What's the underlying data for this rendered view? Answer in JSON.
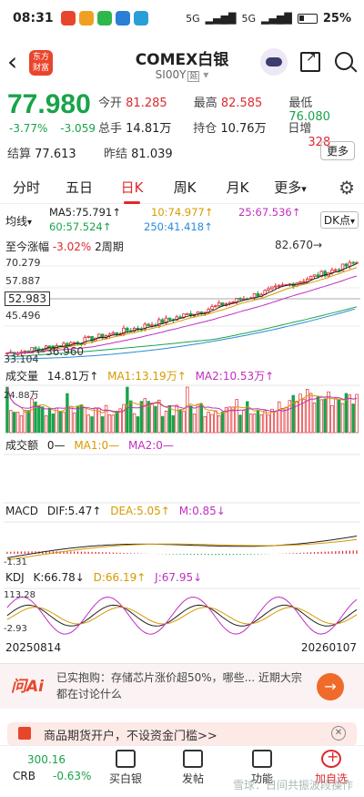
{
  "status_bar": {
    "time": "08:31",
    "network": "5G",
    "battery": "25%"
  },
  "header": {
    "logo_text": "东方财富",
    "title": "COMEX白银",
    "subtitle": "SI00Y",
    "subtitle_tag": "延"
  },
  "quote": {
    "price": "77.980",
    "change_pct": "-3.77%",
    "change": "-3.059",
    "row1": [
      {
        "label": "今开",
        "value": "81.285",
        "color": "red"
      },
      {
        "label": "最高",
        "value": "82.585",
        "color": "red"
      },
      {
        "label": "最低",
        "value": "76.080",
        "color": "green"
      }
    ],
    "row2": [
      {
        "label": "总手",
        "value": "14.81万",
        "color": "dark"
      },
      {
        "label": "持仓",
        "value": "10.76万",
        "color": "dark"
      },
      {
        "label": "日增",
        "value": "328",
        "color": "red"
      }
    ],
    "row3": [
      {
        "label": "结算",
        "value": "77.613",
        "color": "dark"
      },
      {
        "label": "昨结",
        "value": "81.039",
        "color": "dark"
      }
    ],
    "more_label": "更多"
  },
  "tabs": [
    "分时",
    "五日",
    "日K",
    "周K",
    "月K",
    "更多"
  ],
  "active_tab": "日K",
  "ma_legend": {
    "label": "均线",
    "ma5": "MA5:75.791↑",
    "ma10": "10:74.977↑",
    "ma25": "25:67.536↑",
    "ma60": "60:57.524↑",
    "ma250": "250:41.418↑",
    "dk_label": "DK点"
  },
  "range_stats": {
    "label": "至今涨幅",
    "pct": "-3.02%",
    "period": "2周期"
  },
  "price_axis": {
    "top": "70.279",
    "l2": "57.887",
    "cursor": "52.983",
    "l3": "45.496",
    "bottom": "33.104"
  },
  "annotations": {
    "high": "82.670",
    "low": "36.960"
  },
  "volume": {
    "label": "成交量",
    "value": "14.81万↑",
    "ma1": "MA1:13.19万↑",
    "ma2": "MA2:10.53万↑",
    "axis_top": "24.88万"
  },
  "turnover": {
    "label": "成交额",
    "value": "0—",
    "ma1": "MA1:0—",
    "ma2": "MA2:0—"
  },
  "macd": {
    "label": "MACD",
    "dif": "DIF:5.47↑",
    "dea": "DEA:5.05↑",
    "m": "M:0.85↓",
    "axis_bottom": "-1.31"
  },
  "kdj": {
    "label": "KDJ",
    "k": "K:66.78↓",
    "d": "D:66.19↑",
    "j": "J:67.95↓",
    "axis_top": "113.28",
    "axis_bottom": "-2.93"
  },
  "dates": {
    "start": "20250814",
    "end": "20260107"
  },
  "ai": {
    "logo": "问Ai",
    "text": "已实抱购：存储芯片涨价超50%，哪些... 近期大宗都在讨论什么"
  },
  "promo": {
    "text": "商品期货开户，不设资金门槛>>"
  },
  "bottom_bar": {
    "index_name": "CRB",
    "index_value": "300.16",
    "index_change": "-0.63%",
    "items": [
      "买白银",
      "发帖",
      "功能",
      "加自选"
    ],
    "watermark": "雪球：日间共振波段操作"
  },
  "colors": {
    "up": "#e0282e",
    "down": "#19a34a",
    "ma5": "#222222",
    "ma10": "#d69a00",
    "ma25": "#c02fc0",
    "ma60": "#19a34a",
    "ma250": "#2a8bd6"
  }
}
